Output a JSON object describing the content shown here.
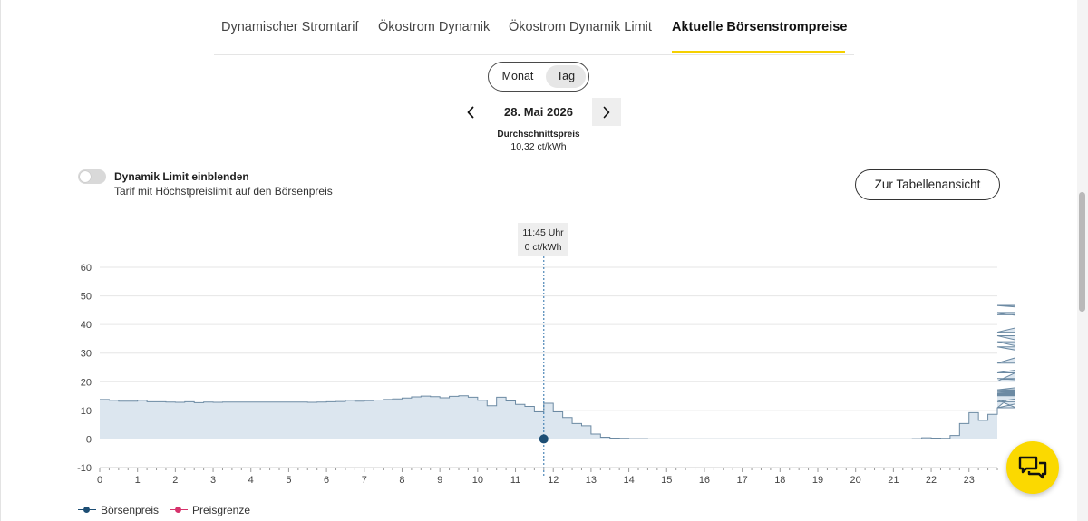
{
  "tabs": [
    {
      "label": "Dynamischer Stromtarif",
      "active": false
    },
    {
      "label": "Ökostrom Dynamik",
      "active": false
    },
    {
      "label": "Ökostrom Dynamik Limit",
      "active": false
    },
    {
      "label": "Aktuelle Börsenstrompreise",
      "active": true
    }
  ],
  "period_toggle": {
    "options": [
      "Monat",
      "Tag"
    ],
    "selected": "Tag"
  },
  "date_nav": {
    "date": "28. Mai 2026",
    "prev_icon": "chevron-left-icon",
    "next_icon": "chevron-right-icon"
  },
  "average": {
    "label": "Durchschnittspreis",
    "value": "10,32 ct/kWh"
  },
  "limit_toggle": {
    "title": "Dynamik Limit einblenden",
    "subtitle": "Tarif mit Höchstpreislimit auf den Börsenpreis",
    "on": false
  },
  "table_button": {
    "label": "Zur Tabellenansicht"
  },
  "tooltip": {
    "time": "11:45 Uhr",
    "value": "0 ct/kWh"
  },
  "legend": [
    {
      "label": "Börsenpreis",
      "color": "#1d4e74"
    },
    {
      "label": "Preisgrenze",
      "color": "#d6336c"
    }
  ],
  "colors": {
    "accent": "#f5d000",
    "series": "#1d4e74",
    "area": "#dce6ef",
    "limit": "#d6336c"
  },
  "chat_button": {
    "icon": "chat-bubbles-icon"
  },
  "chart_data": {
    "type": "area",
    "step": true,
    "x_unit": "hour",
    "x_ticks": [
      "0",
      "1",
      "2",
      "3",
      "4",
      "5",
      "6",
      "7",
      "8",
      "9",
      "10",
      "11",
      "12",
      "13",
      "14",
      "15",
      "16",
      "17",
      "18",
      "19",
      "20",
      "21",
      "22",
      "23"
    ],
    "y_ticks": [
      "-10",
      "0",
      "10",
      "20",
      "30",
      "40",
      "50",
      "60"
    ],
    "ylim": [
      -10,
      60
    ],
    "xlim": [
      0,
      23.75
    ],
    "grid": true,
    "legend_position": "bottom-left",
    "highlight": {
      "x": 11.75,
      "y": 0
    },
    "series": [
      {
        "name": "Börsenpreis",
        "interval_hours": 0.25,
        "values": [
          13.8,
          13.5,
          13.2,
          13.2,
          13.5,
          13.0,
          13.0,
          12.9,
          12.8,
          13.0,
          12.7,
          12.9,
          12.8,
          12.9,
          12.9,
          12.9,
          12.9,
          12.9,
          12.9,
          12.9,
          12.9,
          12.9,
          12.8,
          12.9,
          13.0,
          13.1,
          13.5,
          13.2,
          13.4,
          13.6,
          13.8,
          14.0,
          14.3,
          14.7,
          15.0,
          14.8,
          14.4,
          14.9,
          15.1,
          14.6,
          13.5,
          11.6,
          14.6,
          13.3,
          12.1,
          11.4,
          9.5,
          12.5,
          9.5,
          7.5,
          5.4,
          4.6,
          1.7,
          0.6,
          0.3,
          0.2,
          0.1,
          0.1,
          0.0,
          0.0,
          0.0,
          0.0,
          0.0,
          0.0,
          0.0,
          0.0,
          0.0,
          0.0,
          0.0,
          0.0,
          0.0,
          0.0,
          0.0,
          0.0,
          0.0,
          0.0,
          0.0,
          0.0,
          0.0,
          0.0,
          0.0,
          0.0,
          0.0,
          0.0,
          0.0,
          0.0,
          0.1,
          0.4,
          0.3,
          0.2,
          1.2,
          5.4,
          9.2,
          6.5,
          8.6,
          10.9,
          13.6,
          10.9,
          13.0,
          15.1,
          16.6,
          15.5,
          17.2,
          20.2,
          34.0,
          26.5,
          37.3,
          46.7,
          46.6,
          43.4,
          44.2,
          36.1,
          23.1,
          32.2,
          21.1,
          17.0,
          15.8,
          17.2,
          16.2,
          15.2
        ]
      }
    ]
  }
}
